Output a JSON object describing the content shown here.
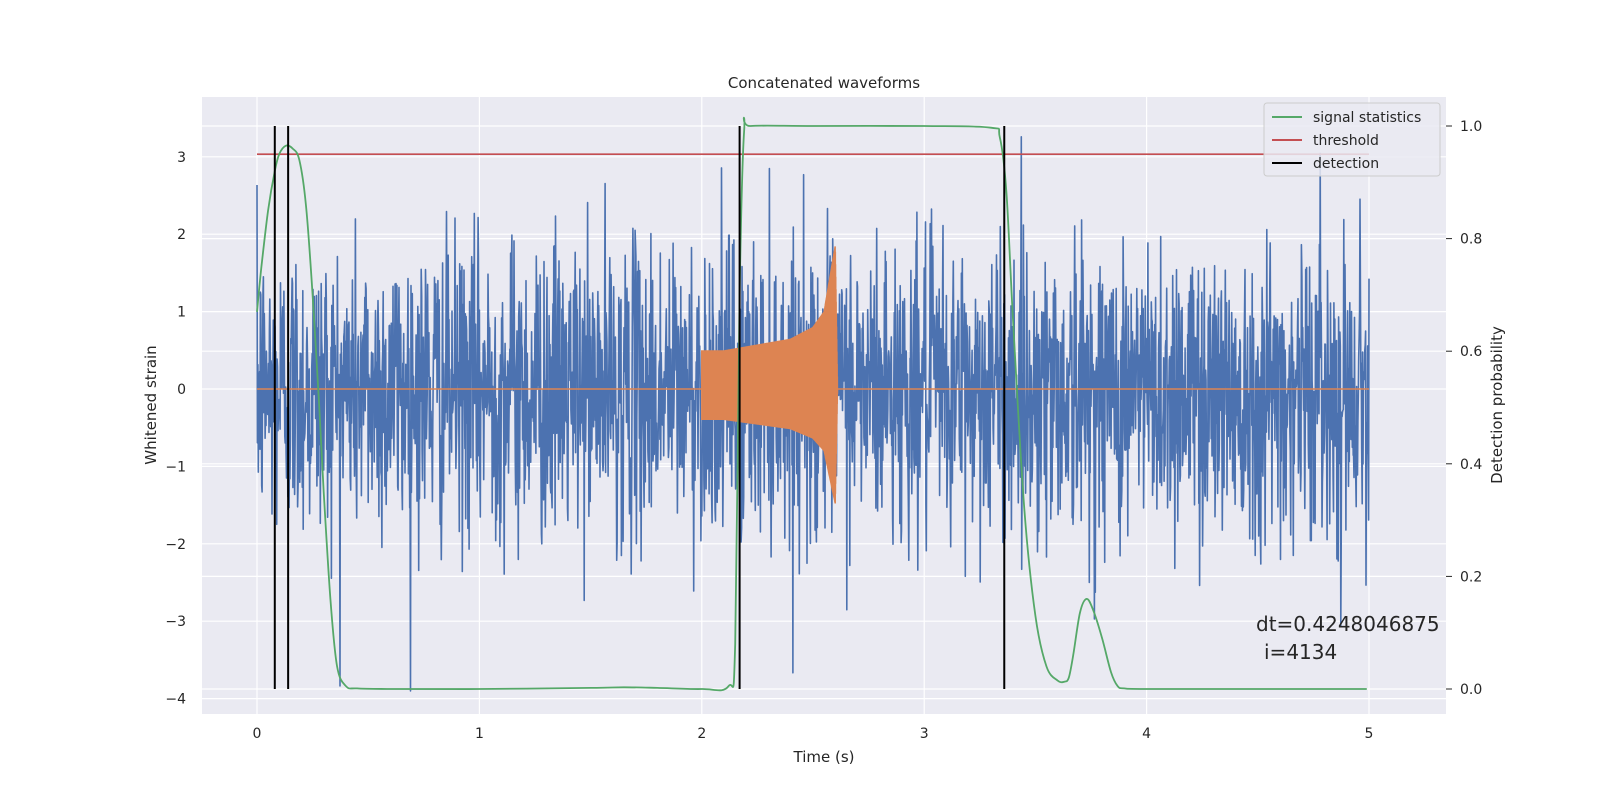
{
  "chart_data": {
    "type": "line",
    "title": "Concatenated waveforms",
    "xlabel": "Time (s)",
    "ylabel_left": "Whitened strain",
    "ylabel_right": "Detection probability",
    "xlim": [
      -0.25,
      5.35
    ],
    "ylim_left": [
      -4.2,
      3.8
    ],
    "ylim_right": [
      -0.05,
      1.05
    ],
    "x_ticks": [
      0,
      1,
      2,
      3,
      4,
      5
    ],
    "x_tick_labels": [
      "0",
      "1",
      "2",
      "3",
      "4",
      "5"
    ],
    "y_left_ticks": [
      3,
      2,
      1,
      0,
      -1,
      -2,
      -3,
      -4
    ],
    "y_left_tick_labels": [
      "3",
      "2",
      "1",
      "0",
      "−1",
      "−2",
      "−3",
      "−4"
    ],
    "y_right_ticks": [
      1.0,
      0.8,
      0.6,
      0.4,
      0.2,
      0.0
    ],
    "y_right_tick_labels": [
      "1.0",
      "0.8",
      "0.6",
      "0.4",
      "0.2",
      "0.0"
    ],
    "grid": true,
    "legend_position": "top-right",
    "legend": [
      "signal statistics",
      "threshold",
      "detection"
    ],
    "colors": {
      "noise": "#4c72b0",
      "injection": "#dd8452",
      "statistic": "#55a868",
      "threshold": "#c44e52",
      "detection": "#000000",
      "background": "#eaeaf2"
    },
    "series": [
      {
        "name": "whitened strain noise",
        "axis": "left",
        "description_values": {
          "x_range": [
            0,
            5
          ],
          "typical_amplitude": 1.0,
          "max_peak": 3.4,
          "min_peak": -3.9
        }
      },
      {
        "name": "injected waveform",
        "axis": "left",
        "x": [
          2.0,
          2.1,
          2.2,
          2.3,
          2.4,
          2.5,
          2.55,
          2.6,
          2.61
        ],
        "envelope": [
          0.5,
          0.5,
          0.55,
          0.6,
          0.65,
          0.8,
          1.0,
          1.85,
          0.0
        ]
      },
      {
        "name": "signal statistics",
        "axis": "right",
        "x": [
          0.0,
          0.02,
          0.05,
          0.08,
          0.1,
          0.13,
          0.16,
          0.19,
          0.22,
          0.25,
          0.28,
          0.3,
          0.33,
          0.36,
          0.4,
          0.45,
          0.6,
          1.0,
          1.5,
          1.65,
          1.8,
          2.0,
          2.12,
          2.15,
          2.17,
          2.19,
          2.22,
          2.5,
          3.0,
          3.3,
          3.34,
          3.37,
          3.4,
          3.45,
          3.5,
          3.55,
          3.6,
          3.63,
          3.65,
          3.67,
          3.7,
          3.73,
          3.76,
          3.8,
          3.84,
          3.87,
          3.9,
          4.0,
          4.5,
          4.99
        ],
        "y": [
          0.67,
          0.75,
          0.85,
          0.92,
          0.95,
          0.965,
          0.96,
          0.94,
          0.86,
          0.7,
          0.5,
          0.35,
          0.16,
          0.04,
          0.005,
          0.001,
          0.0,
          0.0,
          0.002,
          0.003,
          0.002,
          0.0,
          0.005,
          0.08,
          0.7,
          0.99,
          1.0,
          1.0,
          1.0,
          0.997,
          0.98,
          0.88,
          0.65,
          0.32,
          0.13,
          0.04,
          0.015,
          0.013,
          0.02,
          0.06,
          0.135,
          0.16,
          0.14,
          0.09,
          0.03,
          0.005,
          0.001,
          0.0,
          0.0,
          0.0
        ]
      },
      {
        "name": "threshold",
        "axis": "right",
        "x": [
          0,
          5
        ],
        "y": [
          0.95,
          0.95
        ]
      }
    ],
    "detections": [
      0.08,
      0.14,
      2.17,
      3.36
    ],
    "annotation": {
      "line1": "dt=0.4248046875",
      "line2": "i=4134",
      "x": 4.5,
      "y": -3.0
    }
  }
}
